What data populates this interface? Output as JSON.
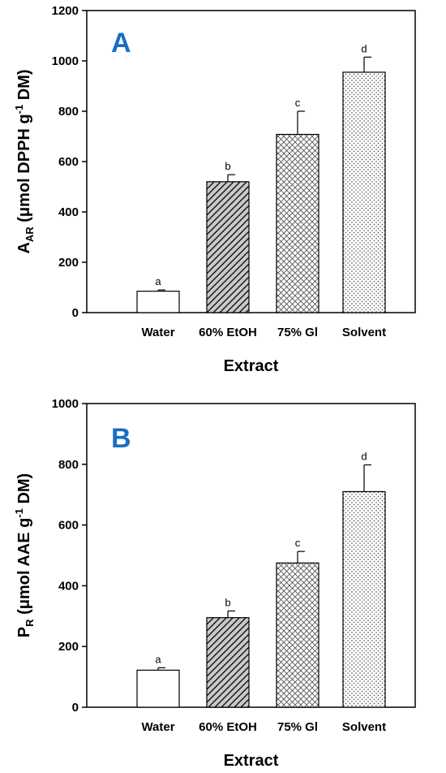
{
  "chart_data": [
    {
      "type": "bar",
      "panel_label": "A",
      "categories": [
        "Water",
        "60% EtOH",
        "75% Gl",
        "Solvent"
      ],
      "values": [
        85,
        520,
        708,
        955
      ],
      "errors": [
        5,
        28,
        92,
        60
      ],
      "significance": [
        "a",
        "b",
        "c",
        "d"
      ],
      "xlabel": "Extract",
      "ylabel": {
        "main": "A",
        "sub": "AR",
        "rest": " (μmol DPPH g",
        "sup": "-1",
        "end": " DM)"
      },
      "ylim": [
        0,
        1200
      ],
      "yticks": [
        0,
        200,
        400,
        600,
        800,
        1000,
        1200
      ],
      "patterns": [
        "none",
        "diagonal",
        "crosshatch",
        "dots"
      ]
    },
    {
      "type": "bar",
      "panel_label": "B",
      "categories": [
        "Water",
        "60% EtOH",
        "75% Gl",
        "Solvent"
      ],
      "values": [
        122,
        295,
        475,
        710
      ],
      "errors": [
        8,
        22,
        38,
        88
      ],
      "significance": [
        "a",
        "b",
        "c",
        "d"
      ],
      "xlabel": "Extract",
      "ylabel": {
        "main": "P",
        "sub": "R",
        "rest": " (μmol AAE g",
        "sup": "-1",
        "end": " DM)"
      },
      "ylim": [
        0,
        1000
      ],
      "yticks": [
        0,
        200,
        400,
        600,
        800,
        1000
      ],
      "patterns": [
        "none",
        "diagonal",
        "crosshatch",
        "dots"
      ]
    }
  ]
}
